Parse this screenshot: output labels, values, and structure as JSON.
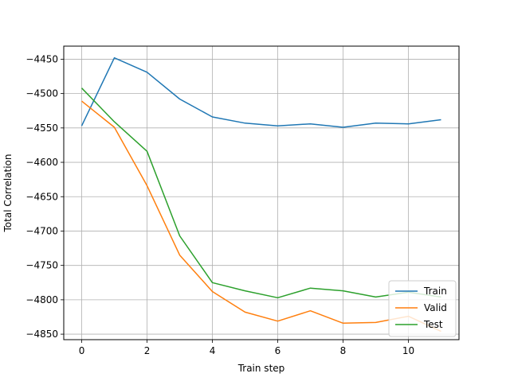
{
  "chart_data": {
    "type": "line",
    "title": "",
    "xlabel": "Train step",
    "ylabel": "Total Correlation",
    "x": [
      0,
      1,
      2,
      3,
      4,
      5,
      6,
      7,
      8,
      9,
      10,
      11
    ],
    "xlim": [
      -0.55,
      11.55
    ],
    "ylim": [
      -4858,
      -4431
    ],
    "xticks": [
      0,
      2,
      4,
      6,
      8,
      10
    ],
    "yticks": [
      -4850,
      -4800,
      -4750,
      -4700,
      -4650,
      -4600,
      -4550,
      -4500,
      -4450
    ],
    "xtick_labels": [
      "0",
      "2",
      "4",
      "6",
      "8",
      "10"
    ],
    "ytick_labels": [
      "−4850",
      "−4800",
      "−4750",
      "−4700",
      "−4650",
      "−4600",
      "−4550",
      "−4500",
      "−4450"
    ],
    "grid": true,
    "legend_position": "lower right",
    "series": [
      {
        "name": "Train",
        "color": "#1f77b4",
        "values": [
          -4547,
          -4448,
          -4469,
          -4508,
          -4534,
          -4543,
          -4547,
          -4544,
          -4549,
          -4543,
          -4544,
          -4538
        ]
      },
      {
        "name": "Valid",
        "color": "#ff7f0e",
        "values": [
          -4511,
          -4549,
          -4634,
          -4735,
          -4788,
          -4818,
          -4831,
          -4816,
          -4834,
          -4833,
          -4824,
          -4846
        ]
      },
      {
        "name": "Test",
        "color": "#2ca02c",
        "values": [
          -4492,
          -4541,
          -4584,
          -4707,
          -4775,
          -4787,
          -4797,
          -4783,
          -4787,
          -4796,
          -4789,
          -4796
        ]
      }
    ]
  }
}
